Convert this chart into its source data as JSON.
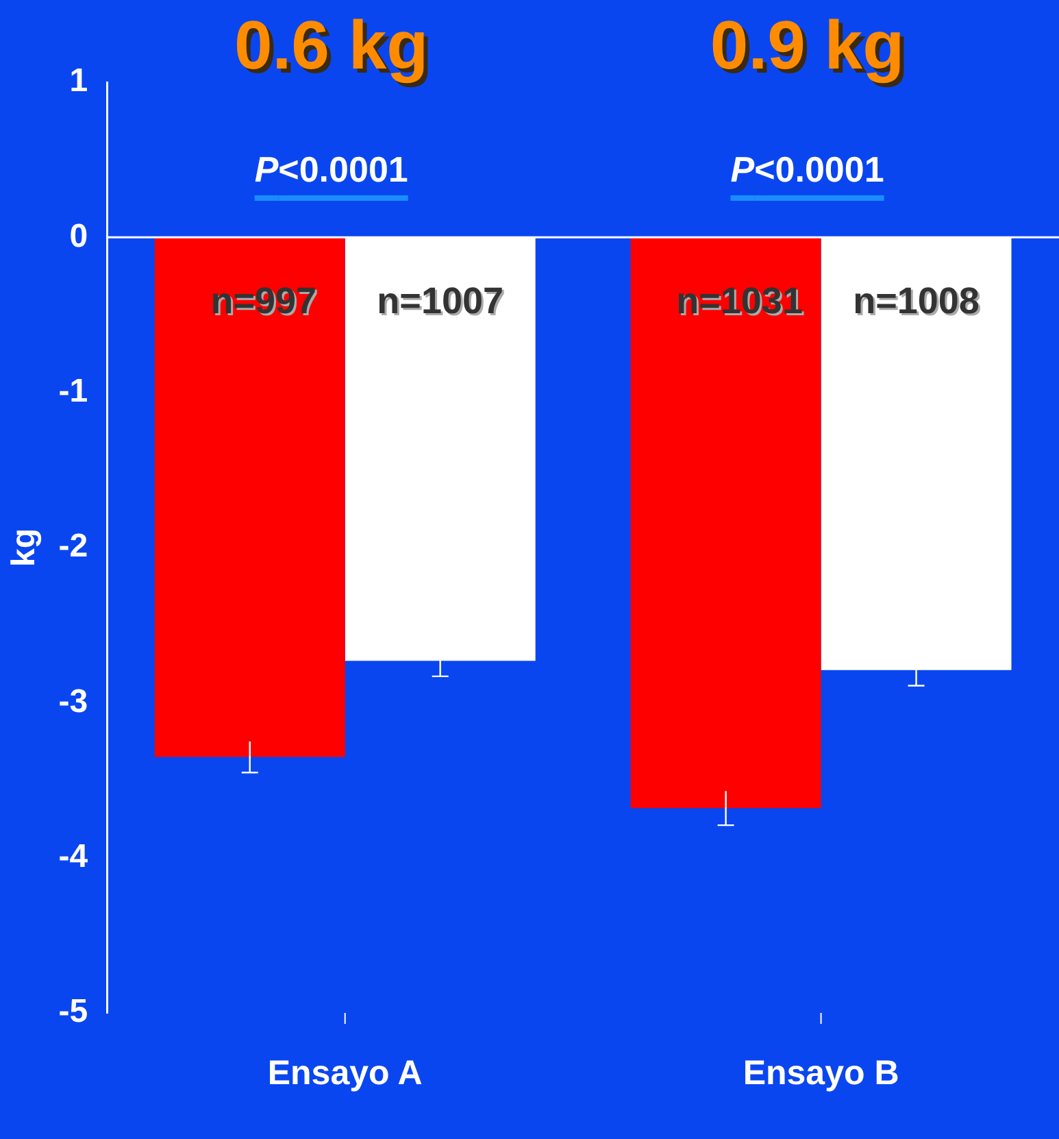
{
  "chart_data": {
    "type": "bar",
    "ylabel": "kg",
    "categories": [
      "Ensayo A",
      "Ensayo B"
    ],
    "series": [
      {
        "color": "#ff0000",
        "values": [
          -3.35,
          -3.68
        ],
        "errors": [
          0.1,
          0.11
        ]
      },
      {
        "color": "#ffffff",
        "values": [
          -2.73,
          -2.79
        ],
        "errors": [
          0.1,
          0.1
        ]
      }
    ],
    "ylim": [
      -5,
      1
    ],
    "yticks": [
      -5,
      -4,
      -3,
      -2,
      -1,
      0,
      1
    ],
    "grid": false,
    "legend": false,
    "ref_lines": [
      {
        "axis": "y",
        "value": 0,
        "color": "#ffffff"
      }
    ],
    "annotations": [
      "0.6 kg",
      "0.9 kg",
      "P<0.0001",
      "P<0.0001",
      "n=997",
      "n=1031",
      "n=1007",
      "n=1008"
    ]
  }
}
